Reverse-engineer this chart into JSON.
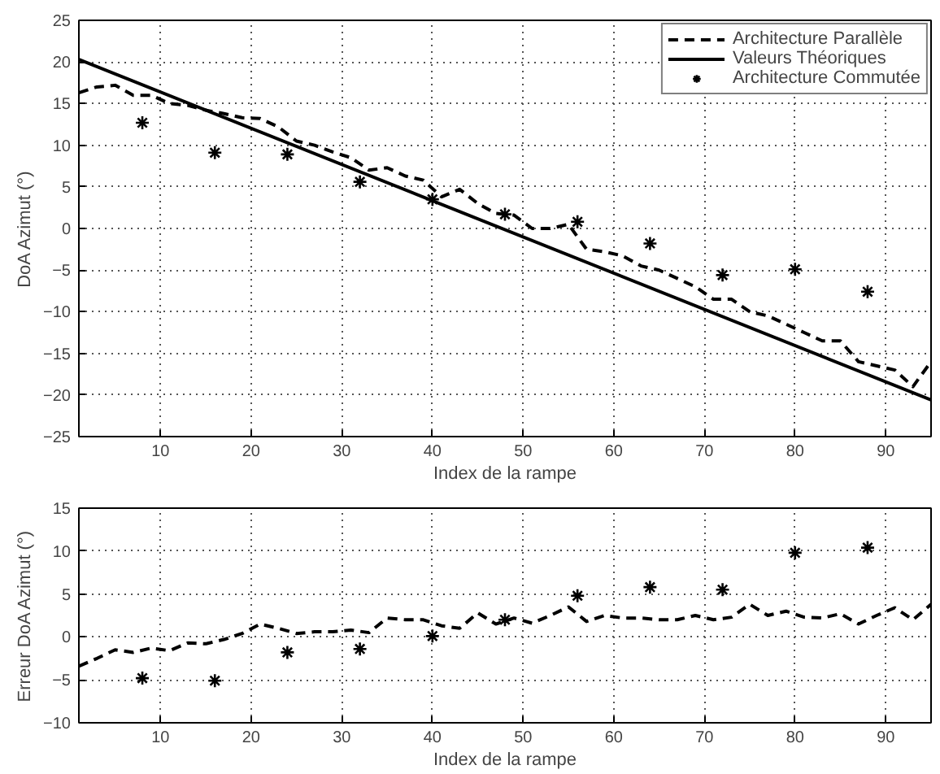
{
  "chart_data": [
    {
      "type": "line",
      "xlabel": "Index de la rampe",
      "ylabel": "DoA Azimut (°)",
      "xlim": [
        1,
        95
      ],
      "ylim": [
        -25,
        25
      ],
      "xticks": [
        10,
        20,
        30,
        40,
        50,
        60,
        70,
        80,
        90
      ],
      "yticks": [
        -25,
        -20,
        -15,
        -10,
        -5,
        0,
        5,
        10,
        15,
        20,
        25
      ],
      "grid": true,
      "legend": "top right",
      "series": [
        {
          "name": "Architecture Parallèle",
          "color": "#000000",
          "line_style": "dashed",
          "x": [
            1,
            3,
            5,
            7,
            9,
            11,
            13,
            15,
            17,
            19,
            21,
            23,
            25,
            27,
            29,
            31,
            33,
            35,
            37,
            39,
            41,
            43,
            45,
            47,
            49,
            51,
            53,
            55,
            57,
            59,
            61,
            63,
            65,
            67,
            69,
            71,
            73,
            75,
            77,
            79,
            81,
            83,
            85,
            87,
            89,
            91,
            93,
            95
          ],
          "values": [
            16.3,
            17,
            17.2,
            16,
            16,
            15,
            14.8,
            14.2,
            13.8,
            13.3,
            13.2,
            12.2,
            10.5,
            10,
            9.2,
            8.5,
            7,
            7.3,
            6.3,
            5.8,
            3.8,
            4.7,
            3,
            1.8,
            1.6,
            0,
            0,
            0.5,
            -2.5,
            -2.8,
            -3.3,
            -4.5,
            -5,
            -6,
            -7,
            -8.5,
            -8.5,
            -10,
            -10.5,
            -11.5,
            -12.5,
            -13.5,
            -13.5,
            -16,
            -16.5,
            -17,
            -19,
            -16
          ]
        },
        {
          "name": "Valeurs Théoriques",
          "color": "#000000",
          "line_style": "solid",
          "x": [
            1,
            95
          ],
          "values": [
            20.3,
            -20.6
          ]
        },
        {
          "name": "Architecture Commutée",
          "type": "scatter",
          "marker": "cross",
          "color": "#000000",
          "x": [
            8,
            16,
            24,
            32,
            40,
            48,
            56,
            64,
            72,
            80,
            88
          ],
          "values": [
            12.7,
            9.1,
            8.9,
            5.6,
            3.5,
            1.7,
            0.8,
            -1.8,
            -5.6,
            -4.9,
            -7.6
          ]
        }
      ]
    },
    {
      "type": "line",
      "xlabel": "Index de la rampe",
      "ylabel": "Erreur DoA Azimut (°)",
      "xlim": [
        1,
        95
      ],
      "ylim": [
        -10,
        15
      ],
      "xticks": [
        10,
        20,
        30,
        40,
        50,
        60,
        70,
        80,
        90
      ],
      "yticks": [
        -10,
        -5,
        0,
        5,
        10,
        15
      ],
      "grid": true,
      "series": [
        {
          "color": "#000000",
          "line_style": "dashed",
          "x": [
            1,
            3,
            5,
            7,
            9,
            11,
            13,
            15,
            17,
            19,
            21,
            23,
            25,
            27,
            29,
            31,
            33,
            35,
            37,
            39,
            41,
            43,
            45,
            47,
            49,
            51,
            53,
            55,
            57,
            59,
            61,
            63,
            65,
            67,
            69,
            71,
            73,
            75,
            77,
            79,
            81,
            83,
            85,
            87,
            89,
            91,
            93,
            95
          ],
          "values": [
            -3.4,
            -2.5,
            -1.5,
            -1.8,
            -1.3,
            -1.6,
            -0.7,
            -0.8,
            -0.3,
            0.4,
            1.5,
            1,
            0.4,
            0.6,
            0.6,
            0.8,
            0.5,
            2.2,
            2,
            2,
            1.3,
            1,
            2.8,
            1.5,
            2.2,
            1.6,
            2.5,
            3.5,
            1.8,
            2.5,
            2.2,
            2.2,
            2,
            2,
            2.5,
            2,
            2.3,
            3.8,
            2.5,
            3,
            2.3,
            2.2,
            2.7,
            1.5,
            2.5,
            3.4,
            2,
            3.8
          ]
        },
        {
          "type": "scatter",
          "marker": "cross",
          "color": "#000000",
          "x": [
            8,
            16,
            24,
            32,
            40,
            48,
            56,
            64,
            72,
            80,
            88
          ],
          "values": [
            -4.8,
            -5.1,
            -1.8,
            -1.4,
            0.1,
            2,
            4.8,
            5.8,
            5.5,
            9.8,
            10.4
          ]
        }
      ]
    }
  ]
}
